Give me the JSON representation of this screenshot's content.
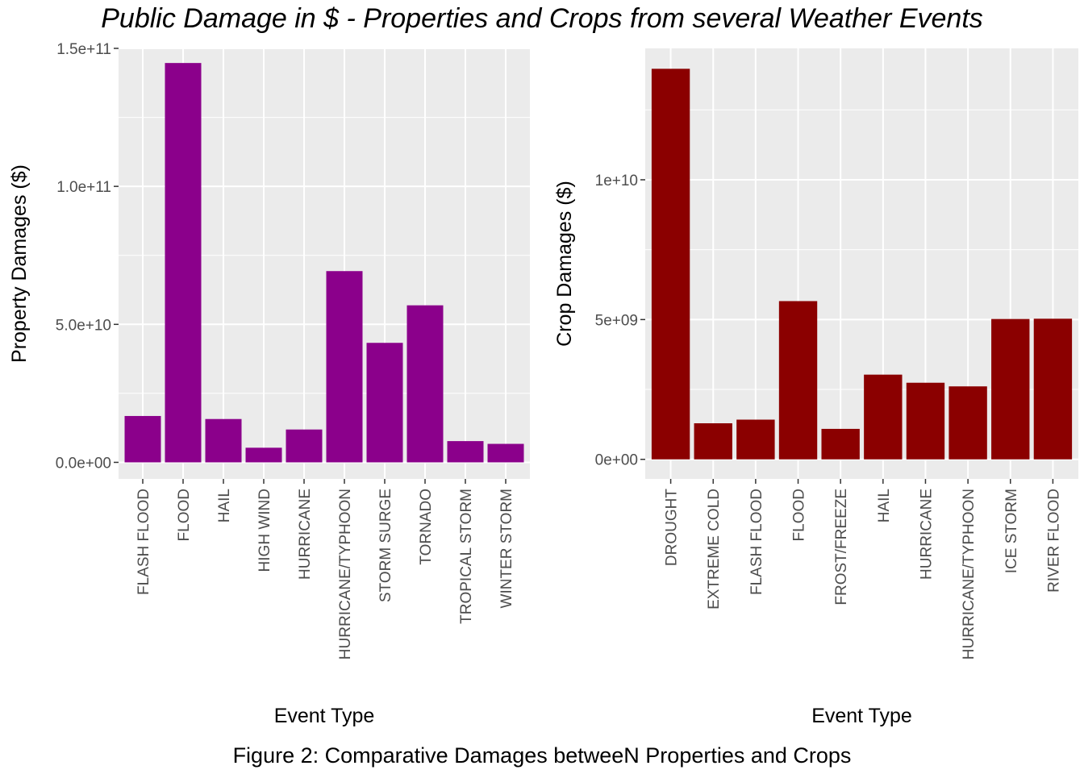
{
  "title": "Public Damage in $ - Properties and Crops from several Weather Events",
  "caption": "Figure 2: Comparative Damages betweeN Properties and Crops",
  "colors": {
    "panel_bg": "#EBEBEB",
    "grid": "#FFFFFF",
    "axis_text": "#4D4D4D",
    "property_bar": "#8B008B",
    "crop_bar": "#8B0000"
  },
  "chart_data": [
    {
      "type": "bar",
      "xlabel": "Event Type",
      "ylabel": "Property Damages ($)",
      "ylim": [
        -6000000000,
        150000000000
      ],
      "yticks": [
        0,
        50000000000,
        100000000000,
        150000000000
      ],
      "ytick_labels": [
        "0.0e+00",
        "5.0e+10",
        "1.0e+11",
        "1.5e+11"
      ],
      "grid": true,
      "bar_color": "#8B008B",
      "categories": [
        "FLASH FLOOD",
        "FLOOD",
        "HAIL",
        "HIGH WIND",
        "HURRICANE",
        "HURRICANE/TYPHOON",
        "STORM SURGE",
        "TORNADO",
        "TROPICAL STORM",
        "WINTER STORM"
      ],
      "values": [
        16800000000,
        144700000000,
        15700000000,
        5300000000,
        11900000000,
        69300000000,
        43300000000,
        56900000000,
        7700000000,
        6700000000
      ]
    },
    {
      "type": "bar",
      "xlabel": "Event Type",
      "ylabel": "Crop Damages ($)",
      "ylim": [
        -700000000,
        14700000000
      ],
      "yticks": [
        0,
        5000000000,
        10000000000
      ],
      "ytick_labels": [
        "0e+00",
        "5e+09",
        "1e+10"
      ],
      "grid": true,
      "bar_color": "#8B0000",
      "categories": [
        "DROUGHT",
        "EXTREME COLD",
        "FLASH FLOOD",
        "FLOOD",
        "FROST/FREEZE",
        "HAIL",
        "HURRICANE",
        "HURRICANE/TYPHOON",
        "ICE STORM",
        "RIVER FLOOD"
      ],
      "values": [
        13970000000,
        1290000000,
        1420000000,
        5660000000,
        1090000000,
        3030000000,
        2740000000,
        2610000000,
        5020000000,
        5030000000
      ]
    }
  ]
}
